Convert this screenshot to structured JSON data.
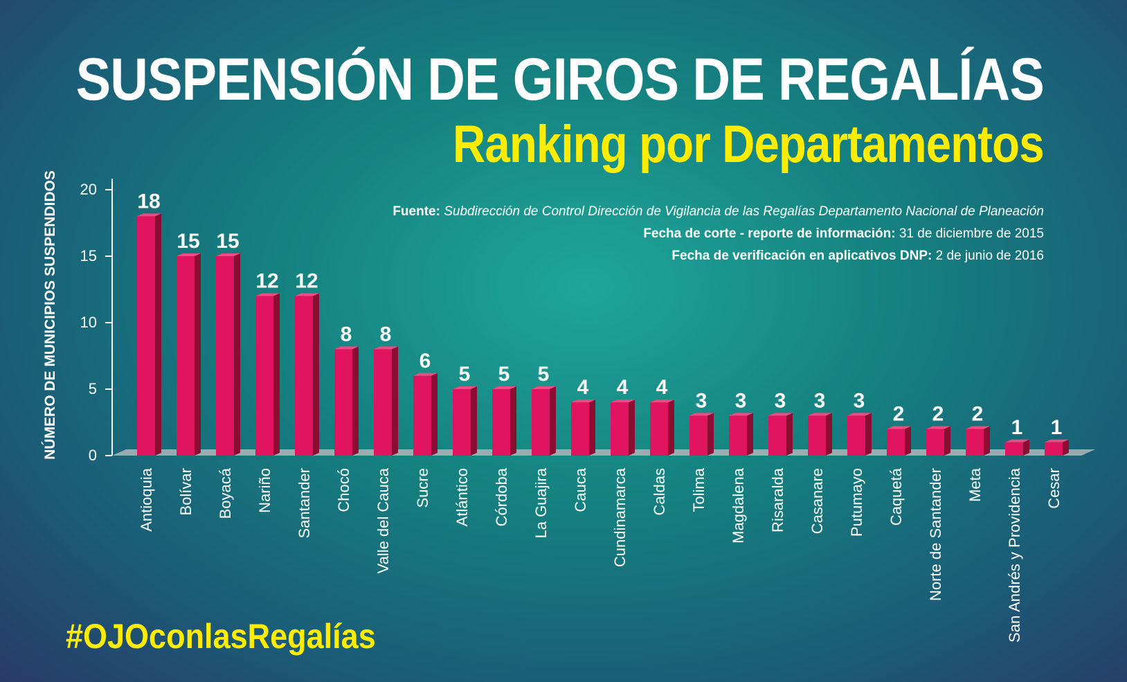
{
  "header": {
    "title": "SUSPENSIÓN DE GIROS DE REGALÍAS",
    "subtitle": "Ranking por Departamentos"
  },
  "notes": {
    "source_label": "Fuente:",
    "source_text": "Subdirección de Control Dirección de Vigilancia de las Regalías Departamento Nacional de Planeación",
    "cutoff_label": "Fecha de corte - reporte de información:",
    "cutoff_value": "31 de diciembre de 2015",
    "verification_label": "Fecha de verificación en aplicativos DNP:",
    "verification_value": "2 de junio de 2016"
  },
  "footer": {
    "hashtag": "#OJOconlasRegalías"
  },
  "colors": {
    "bar_front": "#e0145f",
    "bar_side": "#8c0d32",
    "bar_top": "#f04a82",
    "axis": "#ffffff",
    "title": "#ffffff",
    "subtitle": "#ffec00"
  },
  "chart_data": {
    "type": "bar",
    "title": "SUSPENSIÓN DE GIROS DE REGALÍAS",
    "subtitle": "Ranking por Departamentos",
    "xlabel": "",
    "ylabel": "NÚMERO DE MUNICIPIOS SUSPENDIDOS",
    "ylim": [
      0,
      20
    ],
    "yticks": [
      "0",
      "5",
      "10",
      "15",
      "20"
    ],
    "grid": false,
    "categories": [
      "Antioquia",
      "Bolívar",
      "Boyacá",
      "Nariño",
      "Santander",
      "Chocó",
      "Valle del Cauca",
      "Sucre",
      "Atlántico",
      "Córdoba",
      "La Guajira",
      "Cauca",
      "Cundinamarca",
      "Caldas",
      "Tolima",
      "Magdalena",
      "Risaralda",
      "Casanare",
      "Putumayo",
      "Caquetá",
      "Norte de Santander",
      "Meta",
      "San Andrés y Providencia",
      "Cesar"
    ],
    "values": [
      18,
      15,
      15,
      12,
      12,
      8,
      8,
      6,
      5,
      5,
      5,
      4,
      4,
      4,
      3,
      3,
      3,
      3,
      3,
      2,
      2,
      2,
      1,
      1
    ],
    "data_labels": [
      "18",
      "15",
      "15",
      "12",
      "12",
      "8",
      "8",
      "6",
      "5",
      "5",
      "5",
      "4",
      "4",
      "4",
      "3",
      "3",
      "3",
      "3",
      "3",
      "2",
      "2",
      "2",
      "1",
      "1"
    ]
  }
}
